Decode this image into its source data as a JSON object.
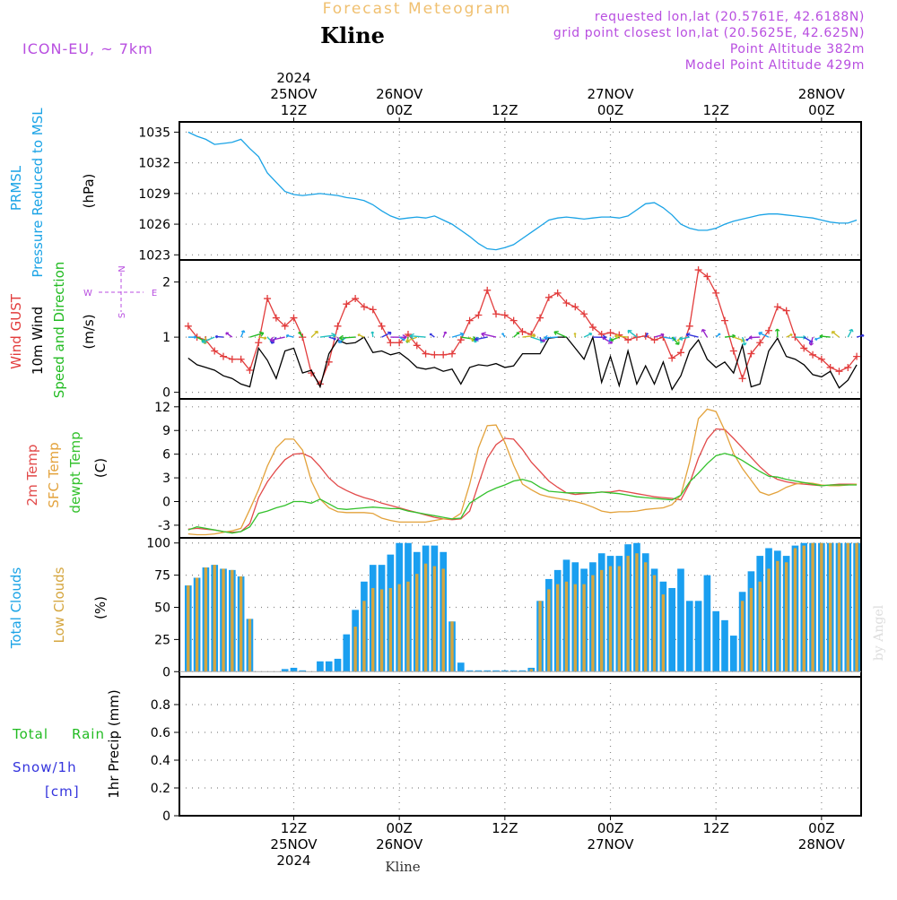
{
  "header": {
    "top_title": "Forecast Meteogram",
    "location": "Kline",
    "model": "ICON-EU, ~ 7km",
    "requested": "requested lon,lat (20.5761E, 42.6188N)",
    "gridpoint": "grid point closest lon,lat (20.5625E, 42.625N)",
    "point_alt": "Point Altitude 382m",
    "model_alt": "Model Point Altitude 429m",
    "watermark": "by Angel",
    "footer": "Kline"
  },
  "colors": {
    "pressure": "#1aa3e6",
    "gust": "#e23c3c",
    "wind": "#000000",
    "dir": "#22bb22",
    "temp2m": "#e24a4a",
    "sfc": "#e3a23b",
    "dewpt": "#33c12c",
    "total_clouds": "#1a9ff0",
    "low_clouds": "#d5a63f",
    "rain": "#22bb22",
    "snow": "#3333dd",
    "purple": "#b84ee0",
    "header": "#f0c070"
  },
  "time_axis": {
    "top_labels": [
      {
        "hour": 12,
        "lines": [
          "2024",
          "25NOV",
          "12Z"
        ]
      },
      {
        "hour": 24,
        "lines": [
          "26NOV",
          "00Z"
        ]
      },
      {
        "hour": 36,
        "lines": [
          "12Z"
        ]
      },
      {
        "hour": 48,
        "lines": [
          "27NOV",
          "00Z"
        ]
      },
      {
        "hour": 60,
        "lines": [
          "12Z"
        ]
      },
      {
        "hour": 72,
        "lines": [
          "28NOV",
          "00Z"
        ]
      }
    ],
    "bottom_labels": [
      {
        "hour": 12,
        "lines": [
          "12Z",
          "25NOV",
          "2024"
        ]
      },
      {
        "hour": 24,
        "lines": [
          "00Z",
          "26NOV"
        ]
      },
      {
        "hour": 36,
        "lines": [
          "12Z"
        ]
      },
      {
        "hour": 48,
        "lines": [
          "00Z",
          "27NOV"
        ]
      },
      {
        "hour": 60,
        "lines": [
          "12Z"
        ]
      },
      {
        "hour": 72,
        "lines": [
          "00Z",
          "28NOV"
        ]
      }
    ]
  },
  "panel_labels": {
    "pressure": {
      "l1": "PRMSL",
      "l2": "Pressure Reduced to MSL",
      "unit": "(hPa)"
    },
    "wind": {
      "l1": "Wind GUST",
      "l2": "10m Wind",
      "l3": "Speed and Direction",
      "unit": "(m/s)",
      "compass_n": "N",
      "compass_s": "S",
      "compass_w": "W",
      "compass_e": "E"
    },
    "temp": {
      "l1": "2m Temp",
      "l2": "SFC Temp",
      "l3": "dewpt Temp",
      "unit": "(C)"
    },
    "clouds": {
      "l1": "Total Clouds",
      "l2": "Low Clouds",
      "unit": "(%)"
    },
    "precip": {
      "l1": "Total",
      "l1b": "Rain",
      "l2": "Snow/1h",
      "l3": "[cm]",
      "unit": "1hr Precip (mm)"
    }
  },
  "chart_data": [
    {
      "name": "pressure",
      "type": "line",
      "ylabel": "(hPa)",
      "ylim": [
        1022.5,
        1036
      ],
      "yticks": [
        1023,
        1026,
        1029,
        1032,
        1035
      ],
      "series": [
        {
          "name": "PRMSL",
          "x": [
            0,
            1,
            2,
            3,
            4,
            5,
            6,
            7,
            8,
            9,
            10,
            11,
            12,
            13,
            14,
            15,
            16,
            17,
            18,
            19,
            20,
            21,
            22,
            23,
            24,
            25,
            26,
            27,
            28,
            29,
            30,
            31,
            32,
            33,
            34,
            35,
            36,
            37,
            38,
            39,
            40,
            41,
            42,
            43,
            44,
            45,
            46,
            47,
            48,
            49,
            50,
            51,
            52,
            53,
            54,
            55,
            56,
            57,
            58,
            59,
            60,
            61,
            62,
            63,
            64,
            65,
            66,
            67,
            68,
            69,
            70,
            71,
            72,
            73,
            74,
            75,
            76
          ],
          "values": [
            1035.0,
            1034.6,
            1034.3,
            1033.8,
            1033.9,
            1034.0,
            1034.3,
            1033.4,
            1032.6,
            1031.0,
            1030.1,
            1029.2,
            1028.9,
            1028.8,
            1028.9,
            1029.0,
            1028.9,
            1028.8,
            1028.6,
            1028.5,
            1028.3,
            1027.9,
            1027.3,
            1026.8,
            1026.5,
            1026.6,
            1026.7,
            1026.6,
            1026.8,
            1026.4,
            1026.0,
            1025.4,
            1024.8,
            1024.1,
            1023.6,
            1023.5,
            1023.7,
            1024.0,
            1024.6,
            1025.2,
            1025.8,
            1026.4,
            1026.6,
            1026.7,
            1026.6,
            1026.5,
            1026.6,
            1026.7,
            1026.7,
            1026.6,
            1026.8,
            1027.4,
            1028.0,
            1028.1,
            1027.6,
            1026.9,
            1026.0,
            1025.6,
            1025.4,
            1025.4,
            1025.6,
            1026.0,
            1026.3,
            1026.5,
            1026.7,
            1026.9,
            1027.0,
            1027.0,
            1026.9,
            1026.8,
            1026.7,
            1026.6,
            1026.4,
            1026.2,
            1026.1,
            1026.1,
            1026.4
          ]
        }
      ]
    },
    {
      "name": "wind",
      "type": "line",
      "ylabel": "(m/s)",
      "ylim": [
        -0.12,
        2.4
      ],
      "yticks": [
        0,
        1,
        2
      ],
      "x": [
        0,
        1,
        2,
        3,
        4,
        5,
        6,
        7,
        8,
        9,
        10,
        11,
        12,
        13,
        14,
        15,
        16,
        17,
        18,
        19,
        20,
        21,
        22,
        23,
        24,
        25,
        26,
        27,
        28,
        29,
        30,
        31,
        32,
        33,
        34,
        35,
        36,
        37,
        38,
        39,
        40,
        41,
        42,
        43,
        44,
        45,
        46,
        47,
        48,
        49,
        50,
        51,
        52,
        53,
        54,
        55,
        56,
        57,
        58,
        59,
        60,
        61,
        62,
        63,
        64,
        65,
        66,
        67,
        68,
        69,
        70,
        71,
        72,
        73,
        74,
        75,
        76
      ],
      "series": [
        {
          "name": "Wind GUST",
          "values": [
            1.2,
            1.0,
            0.95,
            0.75,
            0.65,
            0.6,
            0.6,
            0.4,
            0.9,
            1.7,
            1.35,
            1.2,
            1.35,
            1.0,
            0.35,
            0.15,
            0.55,
            1.2,
            1.6,
            1.7,
            1.55,
            1.5,
            1.2,
            0.9,
            0.9,
            1.05,
            0.85,
            0.7,
            0.68,
            0.68,
            0.7,
            0.95,
            1.3,
            1.4,
            1.85,
            1.42,
            1.4,
            1.3,
            1.1,
            1.05,
            1.35,
            1.72,
            1.8,
            1.62,
            1.55,
            1.42,
            1.18,
            1.05,
            1.08,
            1.04,
            0.95,
            1.0,
            1.02,
            0.95,
            1.0,
            0.62,
            0.72,
            1.2,
            2.22,
            2.1,
            1.8,
            1.3,
            0.75,
            0.25,
            0.7,
            0.9,
            1.12,
            1.55,
            1.48,
            1.0,
            0.8,
            0.68,
            0.6,
            0.45,
            0.38,
            0.45,
            0.65
          ]
        },
        {
          "name": "10m Wind",
          "values": [
            0.62,
            0.5,
            0.45,
            0.4,
            0.3,
            0.25,
            0.15,
            0.1,
            0.8,
            0.58,
            0.25,
            0.75,
            0.8,
            0.35,
            0.4,
            0.1,
            0.7,
            0.95,
            0.88,
            0.9,
            1.0,
            0.72,
            0.75,
            0.68,
            0.72,
            0.6,
            0.45,
            0.42,
            0.45,
            0.38,
            0.42,
            0.15,
            0.45,
            0.5,
            0.48,
            0.52,
            0.45,
            0.48,
            0.7,
            0.7,
            0.7,
            0.98,
            1.0,
            1.0,
            0.8,
            0.6,
            1.0,
            0.18,
            0.65,
            0.12,
            0.75,
            0.15,
            0.48,
            0.15,
            0.55,
            0.05,
            0.3,
            0.75,
            0.95,
            0.6,
            0.45,
            0.55,
            0.35,
            0.85,
            0.1,
            0.15,
            0.75,
            0.98,
            0.65,
            0.6,
            0.5,
            0.32,
            0.28,
            0.38,
            0.08,
            0.22,
            0.5
          ]
        }
      ]
    },
    {
      "name": "temperature",
      "type": "line",
      "ylabel": "(C)",
      "ylim": [
        -4.6,
        13
      ],
      "yticks": [
        -3,
        0,
        3,
        6,
        9,
        12
      ],
      "x": [
        0,
        1,
        2,
        3,
        4,
        5,
        6,
        7,
        8,
        9,
        10,
        11,
        12,
        13,
        14,
        15,
        16,
        17,
        18,
        19,
        20,
        21,
        22,
        23,
        24,
        25,
        26,
        27,
        28,
        29,
        30,
        31,
        32,
        33,
        34,
        35,
        36,
        37,
        38,
        39,
        40,
        41,
        42,
        43,
        44,
        45,
        46,
        47,
        48,
        49,
        50,
        51,
        52,
        53,
        54,
        55,
        56,
        57,
        58,
        59,
        60,
        61,
        62,
        63,
        64,
        65,
        66,
        67,
        68,
        69,
        70,
        71,
        72,
        73,
        74,
        75,
        76
      ],
      "series": [
        {
          "name": "2m Temp",
          "values": [
            -3.5,
            -3.4,
            -3.5,
            -3.6,
            -3.8,
            -3.9,
            -3.8,
            -2.8,
            0.5,
            2.5,
            4.0,
            5.3,
            6.0,
            6.1,
            5.6,
            4.4,
            3.0,
            2.0,
            1.4,
            0.9,
            0.5,
            0.2,
            -0.2,
            -0.5,
            -0.8,
            -1.1,
            -1.4,
            -1.7,
            -2.0,
            -2.2,
            -2.3,
            -2.2,
            -1.2,
            2.2,
            5.5,
            7.2,
            8.0,
            7.9,
            6.6,
            5.0,
            3.8,
            2.6,
            1.8,
            1.1,
            0.9,
            1.0,
            1.1,
            1.2,
            1.2,
            1.4,
            1.2,
            1.0,
            0.8,
            0.6,
            0.5,
            0.4,
            0.2,
            2.3,
            5.5,
            7.9,
            9.2,
            9.1,
            8.0,
            6.8,
            5.6,
            4.4,
            3.4,
            2.8,
            2.5,
            2.3,
            2.2,
            2.1,
            2.0,
            2.1,
            2.2,
            2.2,
            2.2
          ]
        },
        {
          "name": "SFC Temp",
          "values": [
            -4.1,
            -4.2,
            -4.2,
            -4.1,
            -3.9,
            -3.7,
            -3.4,
            -1.0,
            1.5,
            4.5,
            6.8,
            7.9,
            7.9,
            6.5,
            2.6,
            0.3,
            -0.8,
            -1.3,
            -1.4,
            -1.4,
            -1.4,
            -1.5,
            -2.1,
            -2.4,
            -2.6,
            -2.6,
            -2.6,
            -2.6,
            -2.4,
            -2.2,
            -2.2,
            -1.5,
            2.2,
            6.8,
            9.6,
            9.7,
            7.5,
            4.6,
            2.2,
            1.5,
            0.9,
            0.6,
            0.4,
            0.2,
            0.0,
            -0.3,
            -0.7,
            -1.2,
            -1.4,
            -1.3,
            -1.3,
            -1.2,
            -1.0,
            -0.9,
            -0.8,
            -0.4,
            0.8,
            5.0,
            10.5,
            11.7,
            11.4,
            9.0,
            6.1,
            4.2,
            2.7,
            1.2,
            0.8,
            1.2,
            1.8,
            2.2,
            2.4,
            2.3,
            2.1,
            2.0,
            2.0,
            2.1,
            2.2
          ]
        },
        {
          "name": "dewpt Temp",
          "values": [
            -3.6,
            -3.2,
            -3.4,
            -3.6,
            -3.8,
            -4.0,
            -3.8,
            -3.2,
            -1.5,
            -1.2,
            -0.8,
            -0.5,
            0.0,
            0.0,
            -0.2,
            0.3,
            -0.3,
            -0.9,
            -1.0,
            -0.9,
            -0.8,
            -0.7,
            -0.8,
            -0.9,
            -0.9,
            -1.2,
            -1.4,
            -1.6,
            -1.8,
            -2.0,
            -2.2,
            -2.1,
            -0.2,
            0.5,
            1.2,
            1.7,
            2.1,
            2.6,
            2.8,
            2.5,
            1.8,
            1.3,
            1.2,
            1.1,
            1.1,
            1.1,
            1.1,
            1.2,
            1.1,
            1.0,
            0.8,
            0.6,
            0.5,
            0.4,
            0.3,
            0.2,
            0.8,
            2.5,
            3.6,
            4.8,
            5.8,
            6.1,
            5.8,
            5.2,
            4.5,
            3.8,
            3.2,
            3.1,
            2.8,
            2.6,
            2.4,
            2.2,
            2.0,
            2.1,
            2.1,
            2.1,
            2.1
          ]
        }
      ]
    },
    {
      "name": "clouds",
      "type": "bar",
      "ylabel": "(%)",
      "ylim": [
        -4,
        104
      ],
      "yticks": [
        0,
        25,
        50,
        75,
        100
      ],
      "x": [
        0,
        1,
        2,
        3,
        4,
        5,
        6,
        7,
        8,
        9,
        10,
        11,
        12,
        13,
        14,
        15,
        16,
        17,
        18,
        19,
        20,
        21,
        22,
        23,
        24,
        25,
        26,
        27,
        28,
        29,
        30,
        31,
        32,
        33,
        34,
        35,
        36,
        37,
        38,
        39,
        40,
        41,
        42,
        43,
        44,
        45,
        46,
        47,
        48,
        49,
        50,
        51,
        52,
        53,
        54,
        55,
        56,
        57,
        58,
        59,
        60,
        61,
        62,
        63,
        64,
        65,
        66,
        67,
        68,
        69,
        70,
        71,
        72,
        73,
        74,
        75,
        76
      ],
      "series": [
        {
          "name": "Total Clouds",
          "values": [
            67,
            73,
            81,
            83,
            80,
            79,
            74,
            41,
            0,
            0,
            0,
            2,
            3,
            1,
            0,
            8,
            8,
            10,
            29,
            48,
            70,
            83,
            83,
            91,
            100,
            100,
            93,
            98,
            98,
            93,
            39,
            7,
            1,
            1,
            1,
            1,
            1,
            1,
            1,
            3,
            55,
            72,
            79,
            87,
            85,
            80,
            85,
            92,
            90,
            90,
            99,
            100,
            92,
            80,
            70,
            65,
            80,
            55,
            55,
            75,
            47,
            40,
            28,
            62,
            78,
            90,
            96,
            94,
            90,
            98,
            100,
            100,
            100,
            100,
            100,
            100,
            100
          ]
        },
        {
          "name": "Low Clouds",
          "values": [
            67,
            73,
            81,
            83,
            80,
            79,
            74,
            41,
            0,
            0,
            0,
            0,
            0,
            0,
            0,
            0,
            0,
            0,
            0,
            35,
            55,
            65,
            64,
            65,
            68,
            70,
            76,
            84,
            82,
            80,
            39,
            0,
            0,
            0,
            0,
            0,
            0,
            0,
            0,
            2,
            55,
            64,
            68,
            70,
            68,
            68,
            75,
            79,
            82,
            82,
            90,
            92,
            85,
            75,
            60,
            0,
            0,
            0,
            0,
            0,
            0,
            0,
            0,
            55,
            65,
            70,
            80,
            86,
            85,
            96,
            98,
            100,
            100,
            100,
            100,
            100,
            100
          ]
        }
      ]
    },
    {
      "name": "precipitation",
      "type": "line",
      "ylabel": "1hr Precip (mm)",
      "ylim": [
        0,
        1
      ],
      "yticks": [
        0,
        0.2,
        0.4,
        0.6,
        0.8
      ],
      "series": [
        {
          "name": "Total Rain",
          "x": [
            0,
            76
          ],
          "values": [
            0,
            0
          ]
        }
      ]
    }
  ]
}
